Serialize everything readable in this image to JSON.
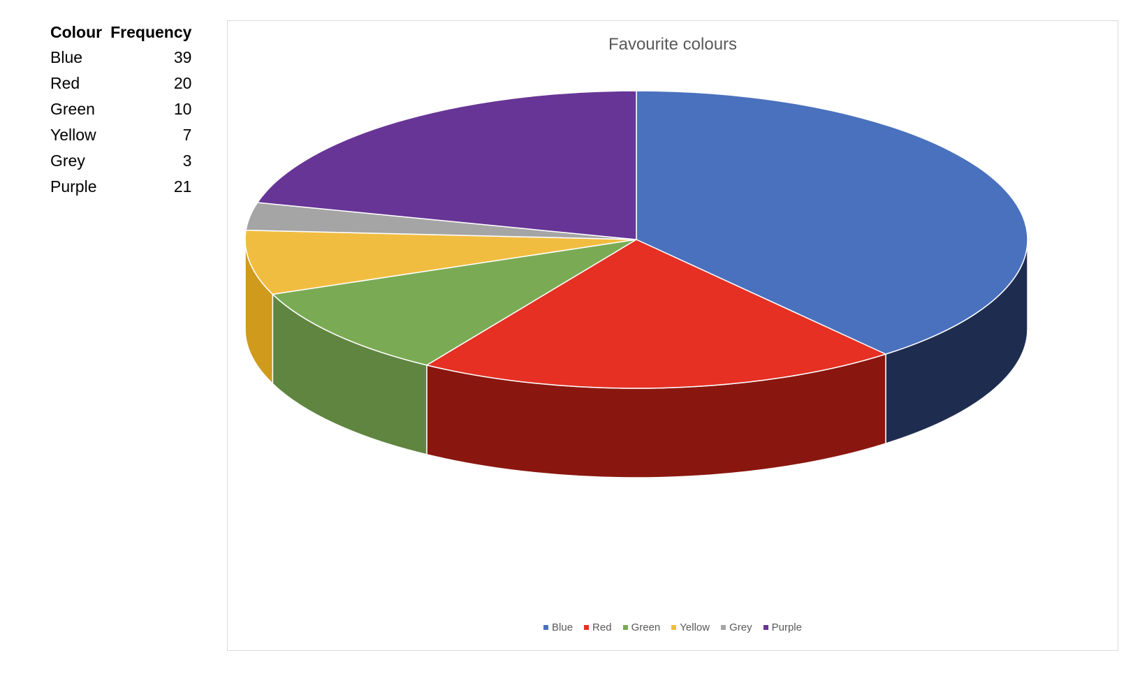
{
  "table": {
    "header_colour": "Colour",
    "header_frequency": "Frequency",
    "rows": [
      {
        "label": "Blue",
        "value": "39"
      },
      {
        "label": "Red",
        "value": "20"
      },
      {
        "label": "Green",
        "value": "10"
      },
      {
        "label": "Yellow",
        "value": "7"
      },
      {
        "label": "Grey",
        "value": "3"
      },
      {
        "label": "Purple",
        "value": "21"
      }
    ]
  },
  "chart_data": {
    "type": "pie",
    "style": "3d",
    "title": "Favourite colours",
    "categories": [
      "Blue",
      "Red",
      "Green",
      "Yellow",
      "Grey",
      "Purple"
    ],
    "values": [
      39,
      20,
      10,
      7,
      3,
      21
    ],
    "colors": [
      "#4a71bd",
      "#e63023",
      "#7aab54",
      "#f1bd41",
      "#a5a5a5",
      "#673596"
    ],
    "side_colors": [
      "#1e2d4f",
      "#8a170f",
      "#5f8540",
      "#d09a1c",
      "#7f7f7f",
      "#43215f"
    ],
    "legend_position": "bottom"
  }
}
